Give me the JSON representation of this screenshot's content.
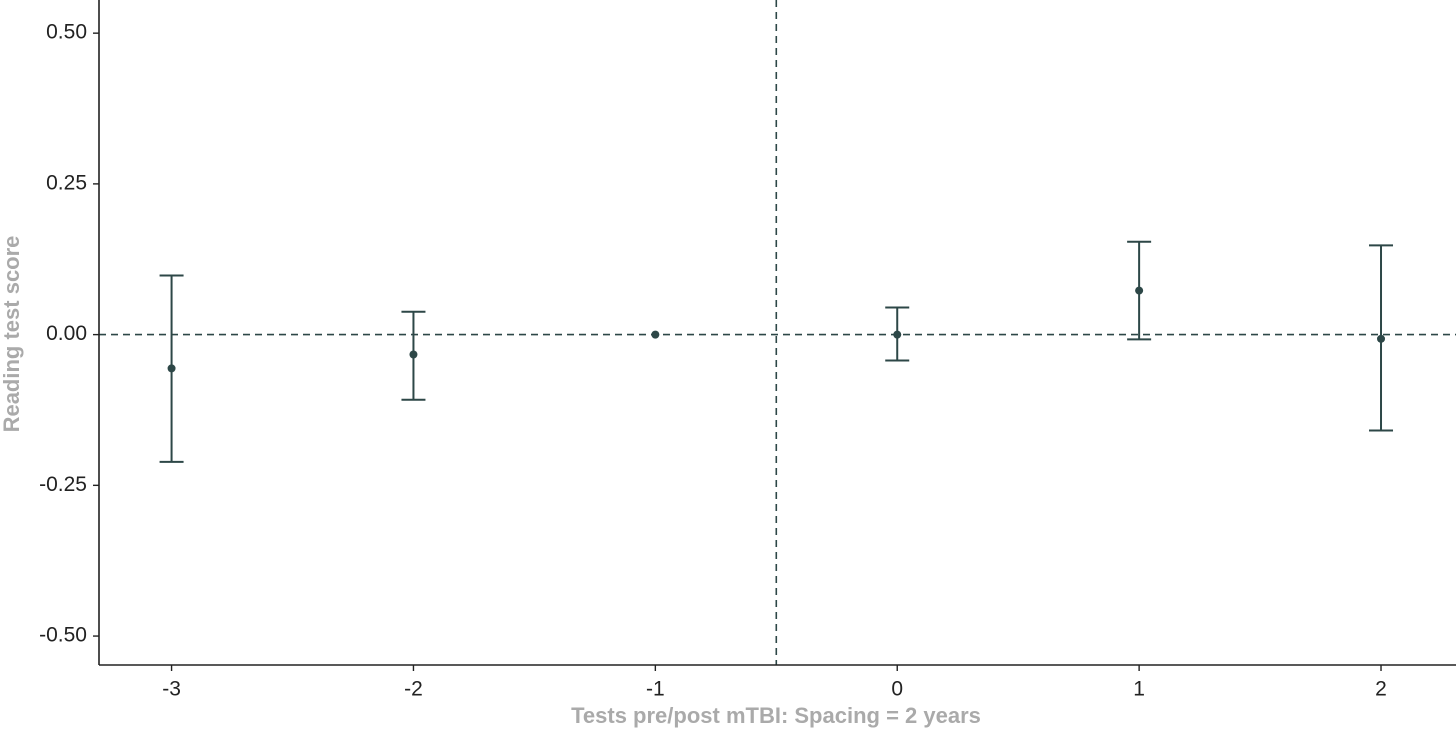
{
  "chart_data": {
    "type": "errorbar",
    "x_label": "Tests pre/post mTBI: Spacing = 2 years",
    "y_label": "Reading test score",
    "xlim": [
      -3.3,
      2.31
    ],
    "ylim": [
      -0.548,
      0.555
    ],
    "xticks": [
      -3,
      -2,
      -1,
      0,
      1,
      2
    ],
    "yticks": [
      {
        "value": -0.5,
        "label": "-0.50"
      },
      {
        "value": -0.25,
        "label": "-0.25"
      },
      {
        "value": 0,
        "label": "0.00"
      },
      {
        "value": 0.25,
        "label": "0.25"
      },
      {
        "value": 0.5,
        "label": "0.50"
      }
    ],
    "hline": 0,
    "vline": -0.5,
    "series": [
      {
        "color": "#2d4747",
        "x": [
          -3,
          -2,
          -1,
          0,
          1,
          2
        ],
        "values": [
          -0.056,
          -0.033,
          0,
          0,
          0.073,
          -0.007
        ],
        "lower": [
          -0.211,
          -0.108,
          null,
          -0.043,
          -0.008,
          -0.159
        ],
        "upper": [
          0.098,
          0.038,
          null,
          0.045,
          0.154,
          0.148
        ]
      }
    ]
  }
}
